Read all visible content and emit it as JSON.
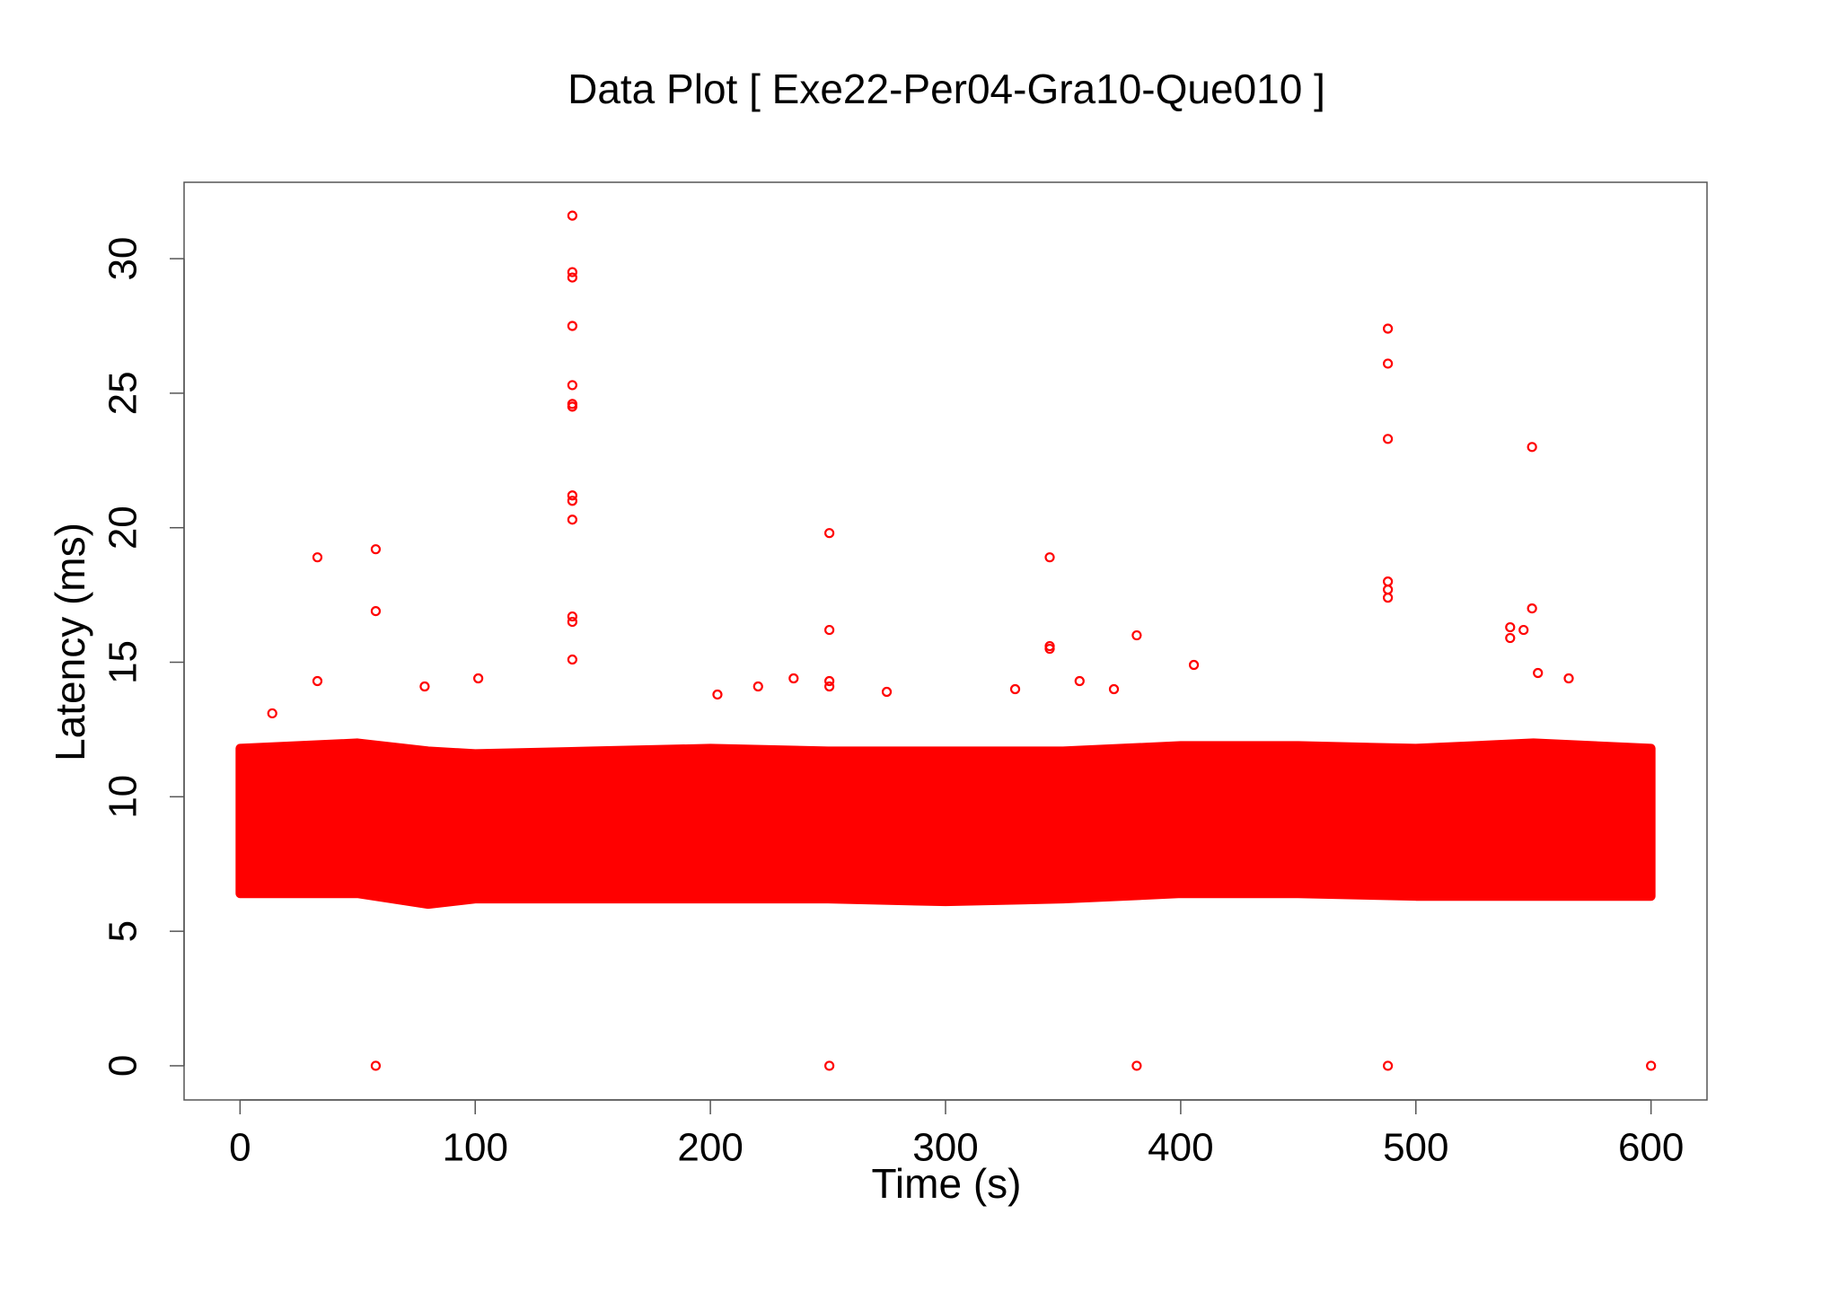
{
  "chart_data": {
    "type": "scatter",
    "title": "Data Plot [ Exe22-Per04-Gra10-Que010 ]",
    "x_label": "Time (s)",
    "y_label": "Latency (ms)",
    "color": "#ff0000",
    "xlim": [
      -23.8,
      623.8
    ],
    "ylim": [
      -1.27,
      32.84
    ],
    "xticks": [
      0,
      100,
      200,
      300,
      400,
      500,
      600
    ],
    "yticks": [
      0,
      5,
      10,
      15,
      20,
      25,
      30
    ],
    "x": [
      32.9,
      57.7,
      57.7,
      57.7,
      32.9,
      141.3,
      141.3,
      141.3,
      141.3,
      141.3,
      141.3,
      141.3,
      141.3,
      141.3,
      141.3,
      141.3,
      141.3,
      141.3,
      250.6,
      250.6,
      250.6,
      250.6,
      250.6,
      344.3,
      344.3,
      344.3,
      381.3,
      381.3,
      405.6,
      488.1,
      488.1,
      488.1,
      488.1,
      488.1,
      488.1,
      488.1,
      549.4,
      549.4,
      540.1,
      540.1,
      545.8,
      600,
      13.7,
      101.3,
      78.5,
      220.3,
      235.4,
      203,
      329.6,
      357,
      371.6,
      565,
      551.9,
      275
    ],
    "values": [
      18.9,
      19.2,
      16.9,
      0,
      14.3,
      31.6,
      29.5,
      29.3,
      27.5,
      25.3,
      24.6,
      24.5,
      21.2,
      21.0,
      20.3,
      16.7,
      16.5,
      15.1,
      19.8,
      16.2,
      14.3,
      14.1,
      0,
      18.9,
      15.6,
      15.5,
      16.0,
      0,
      14.9,
      27.4,
      26.1,
      23.3,
      18.0,
      17.7,
      17.4,
      0,
      23.0,
      17.0,
      16.3,
      15.9,
      16.2,
      0,
      13.1,
      14.4,
      14.1,
      14.1,
      14.4,
      13.8,
      14.0,
      14.3,
      14.0,
      14.4,
      14.6,
      13.9
    ],
    "band": {
      "x": [
        0,
        50,
        80,
        100,
        150,
        200,
        250,
        300,
        350,
        400,
        450,
        500,
        550,
        600
      ],
      "high": [
        11.8,
        12.0,
        11.7,
        11.6,
        11.7,
        11.8,
        11.7,
        11.7,
        11.7,
        11.9,
        11.9,
        11.8,
        12.0,
        11.8
      ],
      "low": [
        6.4,
        6.4,
        6.0,
        6.2,
        6.2,
        6.2,
        6.2,
        6.1,
        6.2,
        6.4,
        6.4,
        6.3,
        6.3,
        6.3
      ]
    }
  }
}
